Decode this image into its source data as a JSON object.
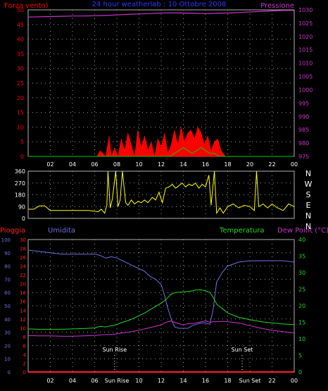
{
  "title": "24 hour weatherlab : 10 Ottobre 2008",
  "colors": {
    "background": "#000000",
    "plot_bg": "#000000",
    "grid": "#9a9a9a",
    "frame": "#b0b0b0",
    "wind": "#ff0000",
    "gust": "#00cc00",
    "pressure": "#cc33cc",
    "direction": "#ffff00",
    "humidity": "#6f6fe0",
    "temperature": "#22d822",
    "dewpoint": "#cc33cc",
    "rain": "#ff2020",
    "title": "#3333ff",
    "time_axis": "#ffffff"
  },
  "chart_data": [
    {
      "id": "wind-pressure",
      "type": "line",
      "left_label": "Forza vento)",
      "right_label": "Pressione",
      "left_ticks": [
        "0",
        "5",
        "10",
        "15",
        "20",
        "25",
        "30",
        "35",
        "40",
        "45",
        "50"
      ],
      "right_ticks": [
        "975",
        "980",
        "985",
        "990",
        "995",
        "1000",
        "1005",
        "1010",
        "1015",
        "1020",
        "1025",
        "1030"
      ],
      "ylim_left": [
        0,
        50
      ],
      "ylim_right": [
        975,
        1030
      ],
      "x_ticks": [
        "02",
        "04",
        "06",
        "08",
        "10",
        "12",
        "14",
        "16",
        "18",
        "20",
        "22",
        "00"
      ],
      "xlim_hours": [
        0,
        24
      ],
      "series": [
        {
          "key": "pressure",
          "axis": "right",
          "style": "line",
          "x": [
            0,
            1,
            2,
            3,
            4,
            5,
            6,
            7,
            8,
            9,
            10,
            11,
            12,
            13,
            14,
            15,
            16,
            17,
            18,
            19,
            20,
            21,
            22,
            23,
            24
          ],
          "y": [
            1027.3,
            1027.4,
            1027.5,
            1027.6,
            1027.7,
            1027.7,
            1027.8,
            1027.9,
            1028.1,
            1028.3,
            1028.5,
            1028.6,
            1028.8,
            1028.9,
            1028.8,
            1028.7,
            1028.6,
            1028.7,
            1028.8,
            1029.0,
            1029.2,
            1029.4,
            1029.6,
            1029.8,
            1029.8
          ]
        },
        {
          "key": "wind",
          "axis": "left",
          "style": "fill",
          "x": [
            0,
            6.2,
            6.5,
            7.0,
            7.3,
            7.5,
            7.8,
            8.1,
            8.4,
            8.7,
            9.0,
            9.3,
            9.6,
            9.9,
            10.2,
            10.5,
            10.8,
            11.1,
            11.4,
            11.7,
            12.0,
            12.3,
            12.6,
            12.9,
            13.2,
            13.5,
            13.8,
            14.1,
            14.4,
            14.7,
            15.0,
            15.3,
            15.6,
            15.9,
            16.2,
            16.5,
            16.8,
            17.1,
            17.4,
            17.8,
            24
          ],
          "y": [
            0,
            0,
            2,
            0,
            7,
            0,
            3,
            0,
            6,
            2,
            8,
            4,
            0,
            9,
            3,
            7,
            2,
            5,
            0,
            6,
            3,
            8,
            1,
            4,
            9,
            4,
            10,
            5,
            8,
            9,
            6,
            10,
            8,
            4,
            7,
            2,
            5,
            6,
            2,
            0,
            0
          ]
        },
        {
          "key": "gust",
          "axis": "left",
          "style": "line",
          "x": [
            0,
            12.8,
            13.2,
            13.6,
            14.0,
            14.4,
            14.8,
            15.2,
            15.6,
            16.0,
            16.4,
            16.8,
            17.2,
            24
          ],
          "y": [
            0,
            0,
            1,
            2,
            3,
            2,
            1,
            2,
            3,
            2,
            1,
            1,
            0,
            0
          ]
        }
      ]
    },
    {
      "id": "wind-direction",
      "type": "line",
      "left_ticks": [
        "0",
        "90",
        "180",
        "270",
        "360"
      ],
      "right_ticks": [
        "N",
        "W",
        "S",
        "E",
        "N",
        "N"
      ],
      "ylim_left": [
        0,
        360
      ],
      "x_ticks": [
        "02",
        "04",
        "06",
        "08",
        "10",
        "12",
        "14",
        "16",
        "18",
        "20",
        "22",
        "00"
      ],
      "xlim_hours": [
        0,
        24
      ],
      "series": [
        {
          "key": "direction",
          "axis": "left",
          "style": "line",
          "x": [
            0,
            0.5,
            1.0,
            1.5,
            2.0,
            3.0,
            4.0,
            5.0,
            5.5,
            6.0,
            6.3,
            6.6,
            6.9,
            7.1,
            7.2,
            7.4,
            7.6,
            7.9,
            8.1,
            8.3,
            8.5,
            8.8,
            9.0,
            9.3,
            9.6,
            9.9,
            10.2,
            10.5,
            10.8,
            11.2,
            11.5,
            11.8,
            12.1,
            12.4,
            12.7,
            13.0,
            13.3,
            13.6,
            13.9,
            14.2,
            14.5,
            14.8,
            15.1,
            15.4,
            15.7,
            16.0,
            16.3,
            16.5,
            16.8,
            17.0,
            17.3,
            17.6,
            18.0,
            18.5,
            19.0,
            19.5,
            20.0,
            20.4,
            20.6,
            20.8,
            21.2,
            21.6,
            22.0,
            22.5,
            23.0,
            23.5,
            24
          ],
          "y": [
            70,
            70,
            95,
            95,
            60,
            60,
            60,
            60,
            60,
            55,
            50,
            70,
            40,
            100,
            360,
            80,
            150,
            360,
            90,
            140,
            360,
            120,
            100,
            140,
            110,
            130,
            120,
            140,
            120,
            160,
            140,
            200,
            120,
            230,
            240,
            260,
            230,
            250,
            270,
            240,
            260,
            250,
            270,
            230,
            260,
            240,
            330,
            100,
            360,
            40,
            80,
            40,
            90,
            110,
            80,
            100,
            90,
            60,
            360,
            90,
            110,
            80,
            110,
            80,
            60,
            110,
            90
          ]
        }
      ]
    },
    {
      "id": "rain-humidity-temp",
      "type": "line",
      "left_label_1": "Pioggia",
      "left_label_2": "Umidita",
      "right_label_1": "Temperatura",
      "right_label_2": "Dew Point (°C)",
      "rain_ticks": [
        "0",
        "2",
        "4",
        "6",
        "8",
        "10",
        "12",
        "14",
        "16",
        "18",
        "20",
        "22",
        "24",
        "26",
        "28",
        "30"
      ],
      "humidity_ticks": [
        "0",
        "10",
        "20",
        "30",
        "40",
        "50",
        "60",
        "70",
        "80",
        "90",
        "100"
      ],
      "temp_ticks": [
        "0",
        "5",
        "10",
        "15",
        "20",
        "25",
        "30",
        "35",
        "40"
      ],
      "ylim_rain": [
        0,
        30
      ],
      "ylim_humidity": [
        0,
        100
      ],
      "ylim_temp": [
        0,
        40
      ],
      "x_ticks": [
        "02",
        "04",
        "06",
        "Sun Rise",
        "10",
        "12",
        "14",
        "16",
        "18",
        "Sun Set",
        "22",
        "00"
      ],
      "xlim_hours": [
        0,
        24
      ],
      "annotations": [
        {
          "text": "Sun Rise",
          "hour": 7.8
        },
        {
          "text": "Sun Set",
          "hour": 19.3
        }
      ],
      "series": [
        {
          "key": "humidity",
          "axis": "humidity",
          "style": "line",
          "x": [
            0,
            1,
            2,
            3,
            4,
            5,
            6,
            6.5,
            7,
            7.5,
            8,
            8.5,
            9,
            9.5,
            10,
            10.5,
            11,
            11.5,
            12,
            12.3,
            12.6,
            12.9,
            13.2,
            13.6,
            14.0,
            14.4,
            14.8,
            15.2,
            15.6,
            16.0,
            16.4,
            16.7,
            17.0,
            17.5,
            18,
            19,
            20,
            21,
            22,
            23,
            24
          ],
          "y": [
            92,
            91,
            90,
            89,
            89,
            89,
            89,
            88,
            86,
            87,
            86,
            84,
            82,
            80,
            78,
            76,
            72,
            70,
            66,
            58,
            48,
            40,
            34,
            33,
            33,
            33,
            35,
            36,
            37,
            37,
            36,
            48,
            68,
            75,
            80,
            83,
            84,
            84,
            84,
            84,
            83
          ]
        },
        {
          "key": "temperature",
          "axis": "temp",
          "style": "line",
          "x": [
            0,
            1,
            2,
            3,
            4,
            5,
            6,
            6.5,
            7,
            7.5,
            8,
            8.5,
            9,
            9.5,
            10,
            10.5,
            11,
            11.5,
            12,
            12.3,
            12.6,
            12.9,
            13.2,
            13.6,
            14.0,
            14.4,
            14.8,
            15.2,
            15.6,
            16.0,
            16.4,
            16.7,
            17.0,
            17.5,
            18,
            19,
            20,
            21,
            22,
            23,
            24
          ],
          "y": [
            13.0,
            12.9,
            12.9,
            12.9,
            13.0,
            13.1,
            13.3,
            13.8,
            13.6,
            14.0,
            14.3,
            15.0,
            15.5,
            16.2,
            17.0,
            17.8,
            18.8,
            19.8,
            20.8,
            21.5,
            22.5,
            23.5,
            23.9,
            24.1,
            24.2,
            24.3,
            24.5,
            24.8,
            24.8,
            24.5,
            24.0,
            22.5,
            20.5,
            19.2,
            17.8,
            16.5,
            15.8,
            15.2,
            14.8,
            14.5,
            14.3
          ]
        },
        {
          "key": "dewpoint",
          "axis": "temp",
          "style": "line",
          "x": [
            0,
            1,
            2,
            3,
            4,
            5,
            6,
            6.5,
            7,
            7.5,
            8,
            8.5,
            9,
            9.5,
            10,
            10.5,
            11,
            11.5,
            12,
            12.3,
            12.6,
            12.9,
            13.2,
            13.6,
            14.0,
            14.4,
            14.8,
            15.2,
            15.6,
            16.0,
            16.4,
            16.7,
            17.0,
            17.5,
            18,
            19,
            20,
            21,
            22,
            23,
            24
          ],
          "y": [
            11.0,
            10.9,
            10.9,
            10.8,
            10.8,
            10.9,
            11.0,
            11.2,
            11.3,
            11.3,
            11.5,
            11.8,
            12.0,
            12.3,
            12.6,
            13.0,
            13.4,
            13.8,
            14.2,
            14.8,
            15.2,
            15.4,
            15.0,
            14.6,
            14.2,
            14.6,
            14.6,
            14.8,
            15.2,
            15.4,
            15.0,
            15.2,
            15.2,
            15.3,
            15.2,
            14.8,
            14.0,
            13.2,
            12.6,
            12.2,
            11.8
          ]
        },
        {
          "key": "rain",
          "axis": "rain",
          "style": "line",
          "x": [
            0,
            24
          ],
          "y": [
            0,
            0
          ]
        }
      ]
    }
  ]
}
